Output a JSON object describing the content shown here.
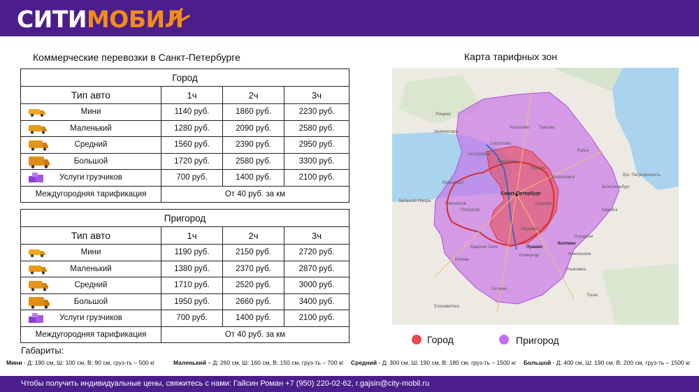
{
  "header": {
    "logo_part1": "СИТИ",
    "logo_part2": "МОБИЛ"
  },
  "left_heading": "Коммерческие перевозки в Санкт-Петербурге",
  "map_heading": "Карта тарифных зон",
  "city_table": {
    "zone": "Город",
    "col_type": "Тип авто",
    "col_1": "1ч",
    "col_2": "2ч",
    "col_3": "3ч",
    "rows": [
      {
        "name": "Мини",
        "p1": "1140 руб.",
        "p2": "1860 руб.",
        "p3": "2230 руб."
      },
      {
        "name": "Маленький",
        "p1": "1280 руб.",
        "p2": "2090 руб.",
        "p3": "2580 руб."
      },
      {
        "name": "Средний",
        "p1": "1560 руб.",
        "p2": "2390 руб.",
        "p3": "2950 руб."
      },
      {
        "name": "Большой",
        "p1": "1720 руб.",
        "p2": "2580 руб.",
        "p3": "3300 руб."
      },
      {
        "name": "Услуги грузчиков",
        "p1": "700 руб.",
        "p2": "1400 руб.",
        "p3": "2100 руб."
      }
    ],
    "intercity_label": "Междугородняя тарификация",
    "intercity_value": "От 40 руб. за км"
  },
  "suburb_table": {
    "zone": "Пригород",
    "col_type": "Тип авто",
    "col_1": "1ч",
    "col_2": "2ч",
    "col_3": "3ч",
    "rows": [
      {
        "name": "Мини",
        "p1": "1190 руб.",
        "p2": "2150 руб.",
        "p3": "2720 руб."
      },
      {
        "name": "Маленький",
        "p1": "1380 руб.",
        "p2": "2370 руб.",
        "p3": "2870 руб."
      },
      {
        "name": "Средний",
        "p1": "1710 руб.",
        "p2": "2520 руб.",
        "p3": "3000 руб."
      },
      {
        "name": "Большой",
        "p1": "1950 руб.",
        "p2": "2660 руб.",
        "p3": "3400 руб."
      },
      {
        "name": "Услуги грузчиков",
        "p1": "700 руб.",
        "p2": "1400 руб.",
        "p3": "2100 руб."
      }
    ],
    "intercity_label": "Междугородняя тарификация",
    "intercity_value": "От 40 руб. за км"
  },
  "dimensions": {
    "title": "Габариты:",
    "items": [
      {
        "name": "Мини",
        "text": " - Д:  190 см, Ш: 100 см, В: 90 см, груз-ть – 500 кг"
      },
      {
        "name": "Маленький",
        "text": " – Д: 260 см, Ш: 160 см, В: 150 см, груз-ть – 700 кг"
      },
      {
        "name": "Средний",
        "text": " - Д:  300 см, Ш: 190 см, В: 180 см, груз-ть – 1500 кг"
      },
      {
        "name": "Большой",
        "text": " - Д:  400 см, Ш: 190 см, В: 200 см, груз-ть – 1500 кг"
      }
    ]
  },
  "map": {
    "labels": {
      "spb": "Санкт-Петербург",
      "zelenogorsk": "Зеленогорск",
      "sestroretsk": "Сестрорецк",
      "kronstadt": "Кронштадт",
      "peterhof": "Петергоф",
      "lomonosov": "Ломоносов",
      "pushkin": "Пушкин",
      "kolpino": "Колпино",
      "gatchina": "Гатчина",
      "vsevolozhsk": "Всеволожск",
      "kirovsk": "Кировск",
      "tosno": "Тосно",
      "krasnoe_selo": "Красное Село",
      "kommunar": "Коммунар",
      "shlisselburg": "Шлиссельбург",
      "kudrovo": "Кудрово",
      "otradnoe": "Отрадное",
      "nikolskoe": "Никольское",
      "agalatovo": "Агалатово",
      "sertolovo": "Сертолово",
      "elizavetino": "Елизаветино",
      "pargolovo": "Парголово",
      "murino": "Мурино",
      "kipen": "Кипень",
      "nikolskoe2": "Никольское",
      "ulyanovka": "Ульяновка",
      "roshchino": "Рощино",
      "toksovo": "Токсово",
      "rahya": "Рахья",
      "petrokrepost": "бух. Петрокрепость",
      "shushary": "Шушары",
      "kolpino2": "Колпино",
      "bolshaya_izhora": "Большая Ижора"
    },
    "colors": {
      "city": "#e84a50",
      "suburb": "#c76ee8",
      "ring": "#d32f2f",
      "kad_blue": "#3a62c4"
    }
  },
  "legend": {
    "city": "Город",
    "suburb": "Пригород",
    "city_color": "#e84a50",
    "suburb_color": "#c46cf0"
  },
  "footer": "Чтобы получить индивидуальные цены, свяжитесь с нами: Гайсин Роман +7 (950) 220-02-62, r.gajsin@city-mobil.ru",
  "icons": {
    "van": "van-icon",
    "boxes": "boxes-icon"
  }
}
